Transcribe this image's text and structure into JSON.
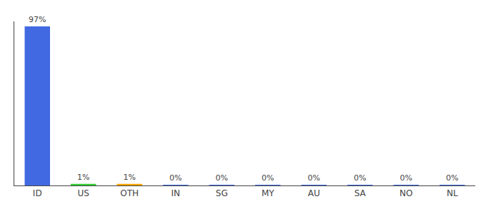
{
  "chart_data": {
    "type": "bar",
    "categories": [
      "ID",
      "US",
      "OTH",
      "IN",
      "SG",
      "MY",
      "AU",
      "SA",
      "NO",
      "NL"
    ],
    "values": [
      97,
      1,
      1,
      0.15,
      0.15,
      0.15,
      0.15,
      0.15,
      0.15,
      0.15
    ],
    "value_labels": [
      "97%",
      "1%",
      "1%",
      "0%",
      "0%",
      "0%",
      "0%",
      "0%",
      "0%",
      "0%"
    ],
    "colors": [
      "#4169E1",
      "#32CD32",
      "#FFA500",
      "#4169E1",
      "#4169E1",
      "#4169E1",
      "#4169E1",
      "#4169E1",
      "#4169E1",
      "#4169E1"
    ],
    "ylim": [
      0,
      100
    ],
    "yticks": [],
    "grid": false,
    "data_labels": true,
    "tick_labels": "x"
  }
}
